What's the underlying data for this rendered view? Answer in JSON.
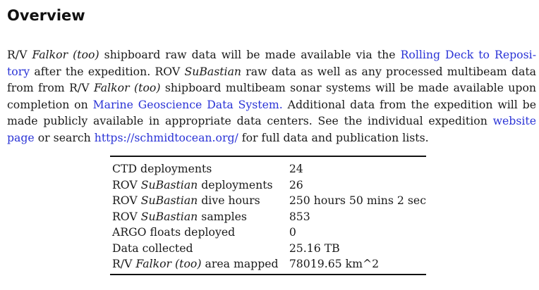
{
  "heading": "Overview",
  "paragraph": {
    "l1_a": "R/V ",
    "l1_b": "Falkor (too)",
    "l1_c": " shipboard raw data will be made available via the ",
    "l1_link": "Rolling Deck to Reposi-",
    "l2_link": "tory",
    "l2_a": " after the expedition. ROV ",
    "l2_b": "SuBastian",
    "l2_c": " raw data as well as any processed multibeam data",
    "l3_a": "from from R/V ",
    "l3_b": "Falkor (too)",
    "l3_c": " shipboard multibeam sonar systems will be made available upon",
    "l4_a": "completion on ",
    "l4_link": "Marine Geoscience Data System.",
    "l4_b": " Additional data from the expedition will be",
    "l5_a": "made publicly available in appropriate data centers. See the individual expedition ",
    "l5_link": "website",
    "l6_link": "page",
    "l6_a": " or search ",
    "l6_link2": "https://schmidtocean.org/",
    "l6_b": " for full data and publication lists.",
    "link_color": "#2a33d6"
  },
  "stats": {
    "rows": [
      {
        "label_a": "CTD deployments",
        "label_b": "",
        "label_c": "",
        "value": "24"
      },
      {
        "label_a": "ROV ",
        "label_b": "SuBastian",
        "label_c": " deployments",
        "value": "26"
      },
      {
        "label_a": "ROV ",
        "label_b": "SuBastian",
        "label_c": " dive hours",
        "value": "250 hours 50 mins 2 sec"
      },
      {
        "label_a": "ROV ",
        "label_b": "SuBastian",
        "label_c": " samples",
        "value": "853"
      },
      {
        "label_a": "ARGO floats deployed",
        "label_b": "",
        "label_c": "",
        "value": "0"
      },
      {
        "label_a": "Data collected",
        "label_b": "",
        "label_c": "",
        "value": "25.16 TB"
      },
      {
        "label_a": "R/V ",
        "label_b": "Falkor (too)",
        "label_c": " area mapped",
        "value": "78019.65 km^2"
      }
    ]
  }
}
